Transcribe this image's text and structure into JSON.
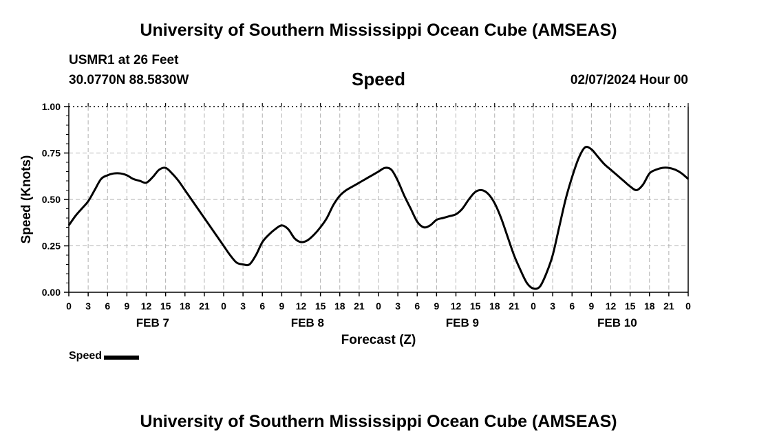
{
  "header": {
    "title": "University of Southern Mississippi Ocean Cube (AMSEAS)",
    "station": "USMR1 at 26 Feet",
    "coordinates": "30.0770N  88.5830W",
    "chart_heading": "Speed",
    "datetime": "02/07/2024 Hour 00"
  },
  "footer": {
    "title": "University of Southern Mississippi Ocean Cube (AMSEAS)"
  },
  "legend": {
    "label": "Speed",
    "color": "#000000"
  },
  "chart_data": {
    "type": "line",
    "title": "Speed",
    "xlabel": "Forecast (Z)",
    "ylabel": "Speed (Knots)",
    "ylim": [
      0,
      1
    ],
    "xlim": [
      0,
      96
    ],
    "grid": true,
    "y_ticks": [
      "0.00",
      "0.25",
      "0.50",
      "0.75",
      "1.00"
    ],
    "x_tick_labels": [
      "0",
      "3",
      "6",
      "9",
      "12",
      "15",
      "18",
      "21",
      "0",
      "3",
      "6",
      "9",
      "12",
      "15",
      "18",
      "21",
      "0",
      "3",
      "6",
      "9",
      "12",
      "15",
      "18",
      "21",
      "0",
      "3",
      "6",
      "9",
      "12",
      "15",
      "18",
      "21",
      "0"
    ],
    "day_labels": [
      "FEB 7",
      "FEB 8",
      "FEB 9",
      "FEB 10"
    ],
    "series": [
      {
        "name": "Speed",
        "color": "#000000",
        "x": [
          0,
          1,
          2,
          3,
          4,
          5,
          6,
          7,
          8,
          9,
          10,
          11,
          12,
          13,
          14,
          15,
          16,
          17,
          18,
          19,
          20,
          21,
          22,
          23,
          24,
          25,
          26,
          27,
          28,
          29,
          30,
          31,
          32,
          33,
          34,
          35,
          36,
          37,
          38,
          39,
          40,
          41,
          42,
          43,
          44,
          45,
          46,
          47,
          48,
          49,
          50,
          51,
          52,
          53,
          54,
          55,
          56,
          57,
          58,
          59,
          60,
          61,
          62,
          63,
          64,
          65,
          66,
          67,
          68,
          69,
          70,
          71,
          72,
          73,
          74,
          75,
          76,
          77,
          78,
          79,
          80,
          81,
          82,
          83,
          84,
          85,
          86,
          87,
          88,
          89,
          90,
          91,
          92,
          93,
          94,
          95,
          96
        ],
        "values": [
          0.36,
          0.41,
          0.45,
          0.49,
          0.55,
          0.61,
          0.63,
          0.64,
          0.64,
          0.63,
          0.61,
          0.6,
          0.59,
          0.62,
          0.66,
          0.67,
          0.64,
          0.6,
          0.55,
          0.5,
          0.45,
          0.4,
          0.35,
          0.3,
          0.25,
          0.2,
          0.16,
          0.15,
          0.15,
          0.2,
          0.27,
          0.31,
          0.34,
          0.36,
          0.34,
          0.29,
          0.27,
          0.28,
          0.31,
          0.35,
          0.4,
          0.47,
          0.52,
          0.55,
          0.57,
          0.59,
          0.61,
          0.63,
          0.65,
          0.67,
          0.66,
          0.6,
          0.52,
          0.45,
          0.38,
          0.35,
          0.36,
          0.39,
          0.4,
          0.41,
          0.42,
          0.45,
          0.5,
          0.54,
          0.55,
          0.53,
          0.48,
          0.4,
          0.3,
          0.2,
          0.12,
          0.05,
          0.02,
          0.03,
          0.1,
          0.2,
          0.35,
          0.5,
          0.62,
          0.72,
          0.78,
          0.77,
          0.73,
          0.69,
          0.66,
          0.63,
          0.6,
          0.57,
          0.55,
          0.58,
          0.64,
          0.66,
          0.67,
          0.67,
          0.66,
          0.64,
          0.61
        ]
      }
    ]
  }
}
